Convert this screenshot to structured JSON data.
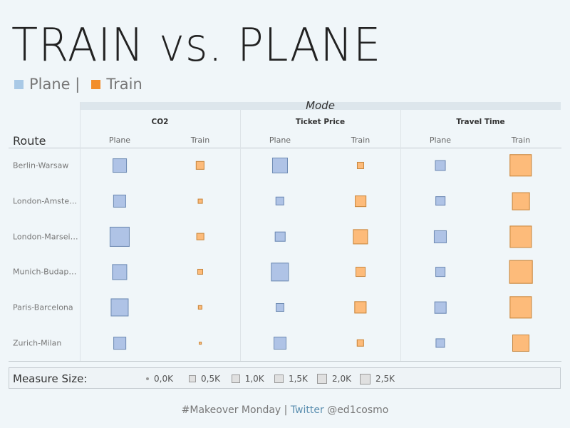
{
  "title": "TRAIN vs. PLANE",
  "legend": {
    "plane_label": "Plane |",
    "train_label": "Train",
    "plane_color": "#a9c9e6",
    "train_color": "#f28e2b"
  },
  "headers": {
    "mode": "Mode",
    "route": "Route",
    "measures": [
      "CO2",
      "Ticket Price",
      "Travel Time"
    ],
    "modes": [
      "Plane",
      "Train"
    ]
  },
  "chart_data": {
    "type": "square-grid",
    "title": "TRAIN vs. PLANE",
    "row_dimension": "Route",
    "column_dimension": "Mode",
    "mark_size_measure": "Measure Size",
    "routes": [
      "Berlin-Warsaw",
      "London-Amsterd..",
      "London-Marseille",
      "Munich-Budapest",
      "Paris-Barcelona",
      "Zurich-Milan"
    ],
    "measures": [
      "CO2",
      "Ticket Price",
      "Travel Time"
    ],
    "modes": [
      "Plane",
      "Train"
    ],
    "series": [
      {
        "measure": "CO2",
        "mode": "Plane",
        "values": [
          1100,
          920,
          2200,
          1250,
          1750,
          880
        ]
      },
      {
        "measure": "CO2",
        "mode": "Train",
        "values": [
          420,
          130,
          320,
          180,
          110,
          40
        ]
      },
      {
        "measure": "Ticket Price",
        "mode": "Plane",
        "values": [
          1350,
          430,
          590,
          1780,
          400,
          900
        ]
      },
      {
        "measure": "Ticket Price",
        "mode": "Train",
        "values": [
          280,
          690,
          1250,
          540,
          830,
          300
        ]
      },
      {
        "measure": "Travel Time",
        "mode": "Plane",
        "values": [
          620,
          520,
          910,
          530,
          770,
          480
        ]
      },
      {
        "measure": "Travel Time",
        "mode": "Train",
        "values": [
          2750,
          1700,
          2700,
          2970,
          2720,
          1600
        ]
      }
    ],
    "size_legend": {
      "label": "Measure Size:",
      "values": [
        0,
        500,
        1000,
        1500,
        2000,
        2500
      ],
      "labels": [
        "0,0K",
        "0,5K",
        "1,0K",
        "1,5K",
        "2,0K",
        "2,5K"
      ]
    }
  },
  "footer": {
    "hashtag": "#Makeover Monday |",
    "twitter": "Twitter",
    "handle": "@ed1cosmo"
  }
}
